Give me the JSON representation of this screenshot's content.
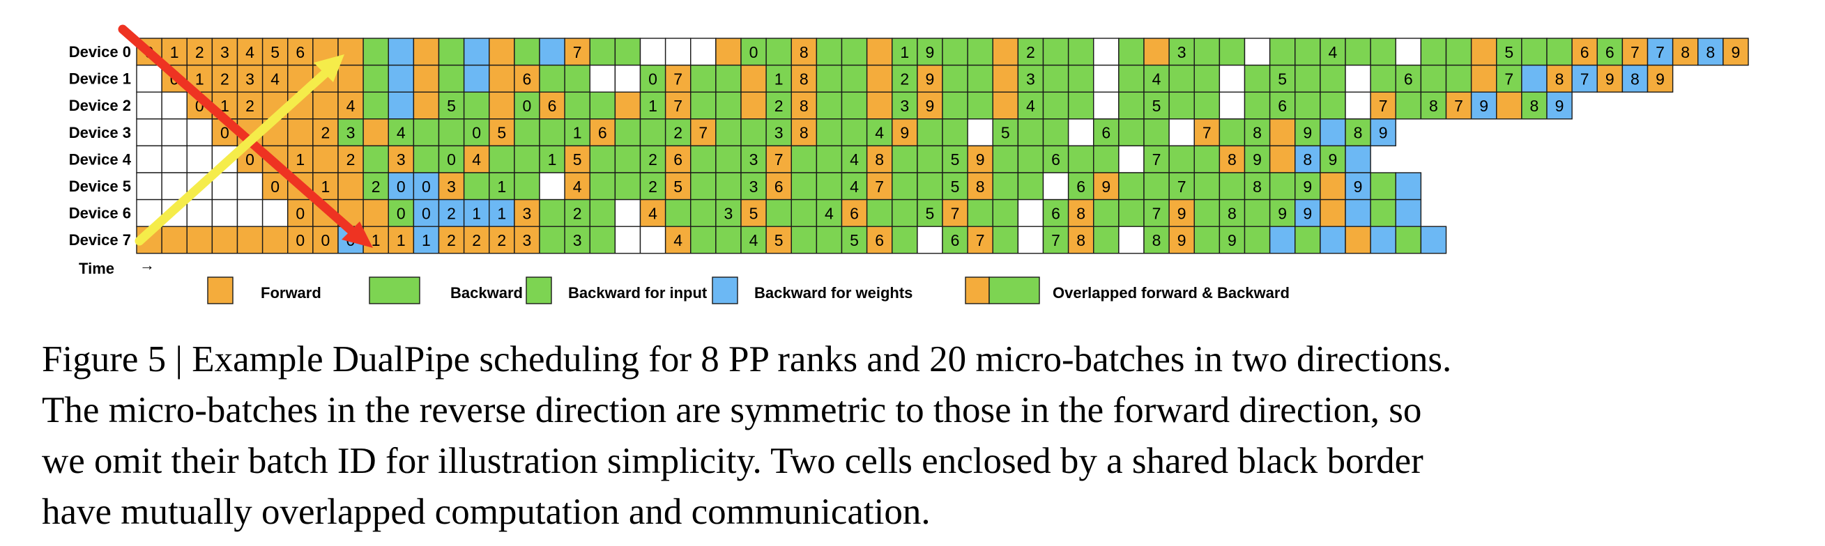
{
  "colors": {
    "forward": "#f4ac3c",
    "backward": "#7dd452",
    "backward_input": "#7dd452",
    "backward_weights": "#6cb8f4",
    "empty": "#ffffff",
    "border": "#1a1a1a",
    "arrow_red": "#ee3322",
    "arrow_yellow": "#f5ec4a"
  },
  "diagram": {
    "devices": [
      "Device 0",
      "Device 1",
      "Device 2",
      "Device 3",
      "Device 4",
      "Device 5",
      "Device 6",
      "Device 7"
    ],
    "time_label": "Time",
    "time_arrow": "→",
    "rows": [
      "F0 F1 F2 F3 F4 F5 F6 F F G W F G W F G W F7 G G E E E F G0 G F8 G G F G1 G9 G G F G2 G G E G F G3 G G E G G G4 G G E G G F G5 G G F6 G6 F7 W7 F8 W8 F9 W9",
      "E F0 F1 F2 F3 F4 F F F G W F G W F F6 G G E E G0 F7 G G F G1 F8 G G F G2 F9 G G F G3 G G E G G4 G G E G G5 G G E G G6 G G F G7 W F8 W7 F9 W8 F9",
      "E E F0 F1 F2 F F F F4 G W F G5 G F G0 F6 G G F G1 F7 G G F G2 F8 G G F G3 F9 G G F G4 G G E G G5 G G E G G6 G G E F7 G G8 F7 W9 F G8 W9",
      "E E E F0 F F F F2 G3 F G4 G G G0 F5 G G G1 F6 G G G2 F7 G G G3 F8 G G G4 F9 G G E G5 G G E G6 G G E F7 G G8 F G9 W G8 W9",
      "E E E E F0 F F1 F F2 G F3 G G0 F4 G G G1 F5 G G G2 F6 G G G3 F7 G G G4 F8 G G G5 F9 G G G6 G G E G7 G G F8 G9 F W8 G9 W",
      "E E E E E F0 F F1 F G2 W0 W0 F3 G G1 G E F4 G G G2 F5 G G G3 F6 G G G4 F7 G G G5 F8 G G E G6 F9 G G G7 G G G8 G G9 F W9 G W",
      "E E E E E E F0 F F F G0 W0 W2 W1 W1 F3 G G2 G E F4 G G G3 F5 G G G4 F6 G G G5 F7 G G E G6 F8 G G G7 F9 G G8 G G9 W9 F W G W",
      "F F F F F F F0 F0 W0 F1 F1 W1 F2 F2 F2 F3 G G3 G E E F4 G G G4 F5 G G G5 F6 G E G6 F7 G E G7 F8 G E G8 F9 G G9 G W G W F W G W"
    ]
  },
  "legend": [
    {
      "key": "forward",
      "label": "Forward"
    },
    {
      "key": "backward",
      "label": "Backward"
    },
    {
      "key": "backward_input",
      "label": "Backward for input"
    },
    {
      "key": "backward_weights",
      "label": "Backward for weights"
    },
    {
      "key": "overlapped",
      "label": "Overlapped forward & Backward"
    }
  ],
  "caption": {
    "line1": "Figure 5 | Example DualPipe scheduling for 8 PP ranks and 20 micro-batches in two directions.",
    "line2": "The micro-batches in the reverse direction are symmetric to those in the forward direction, so",
    "line3": "we omit their batch ID for illustration simplicity. Two cells enclosed by a shared black border",
    "line4": "have mutually overlapped computation and communication."
  }
}
